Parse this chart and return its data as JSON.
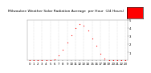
{
  "title": "Milwaukee Weather Solar Radiation Average  per Hour  (24 Hours)",
  "x": [
    0,
    1,
    2,
    3,
    4,
    5,
    6,
    7,
    8,
    9,
    10,
    11,
    12,
    13,
    14,
    15,
    16,
    17,
    18,
    19,
    20,
    21,
    22,
    23
  ],
  "y": [
    0,
    0,
    0,
    0,
    0,
    0,
    15,
    60,
    130,
    210,
    300,
    380,
    430,
    410,
    350,
    260,
    170,
    80,
    20,
    5,
    0,
    0,
    0,
    0
  ],
  "dot_color": "#ff0000",
  "grid_color": "#bbbbbb",
  "bg_color": "#ffffff",
  "ylim": [
    0,
    480
  ],
  "ytick_labels": [
    "1",
    "2",
    "3",
    "4",
    "5"
  ],
  "ytick_vals": [
    96,
    192,
    288,
    384,
    480
  ],
  "legend_box_color": "#ff0000",
  "title_fontsize": 3.2,
  "tick_fontsize": 2.8,
  "dot_size": 0.8
}
